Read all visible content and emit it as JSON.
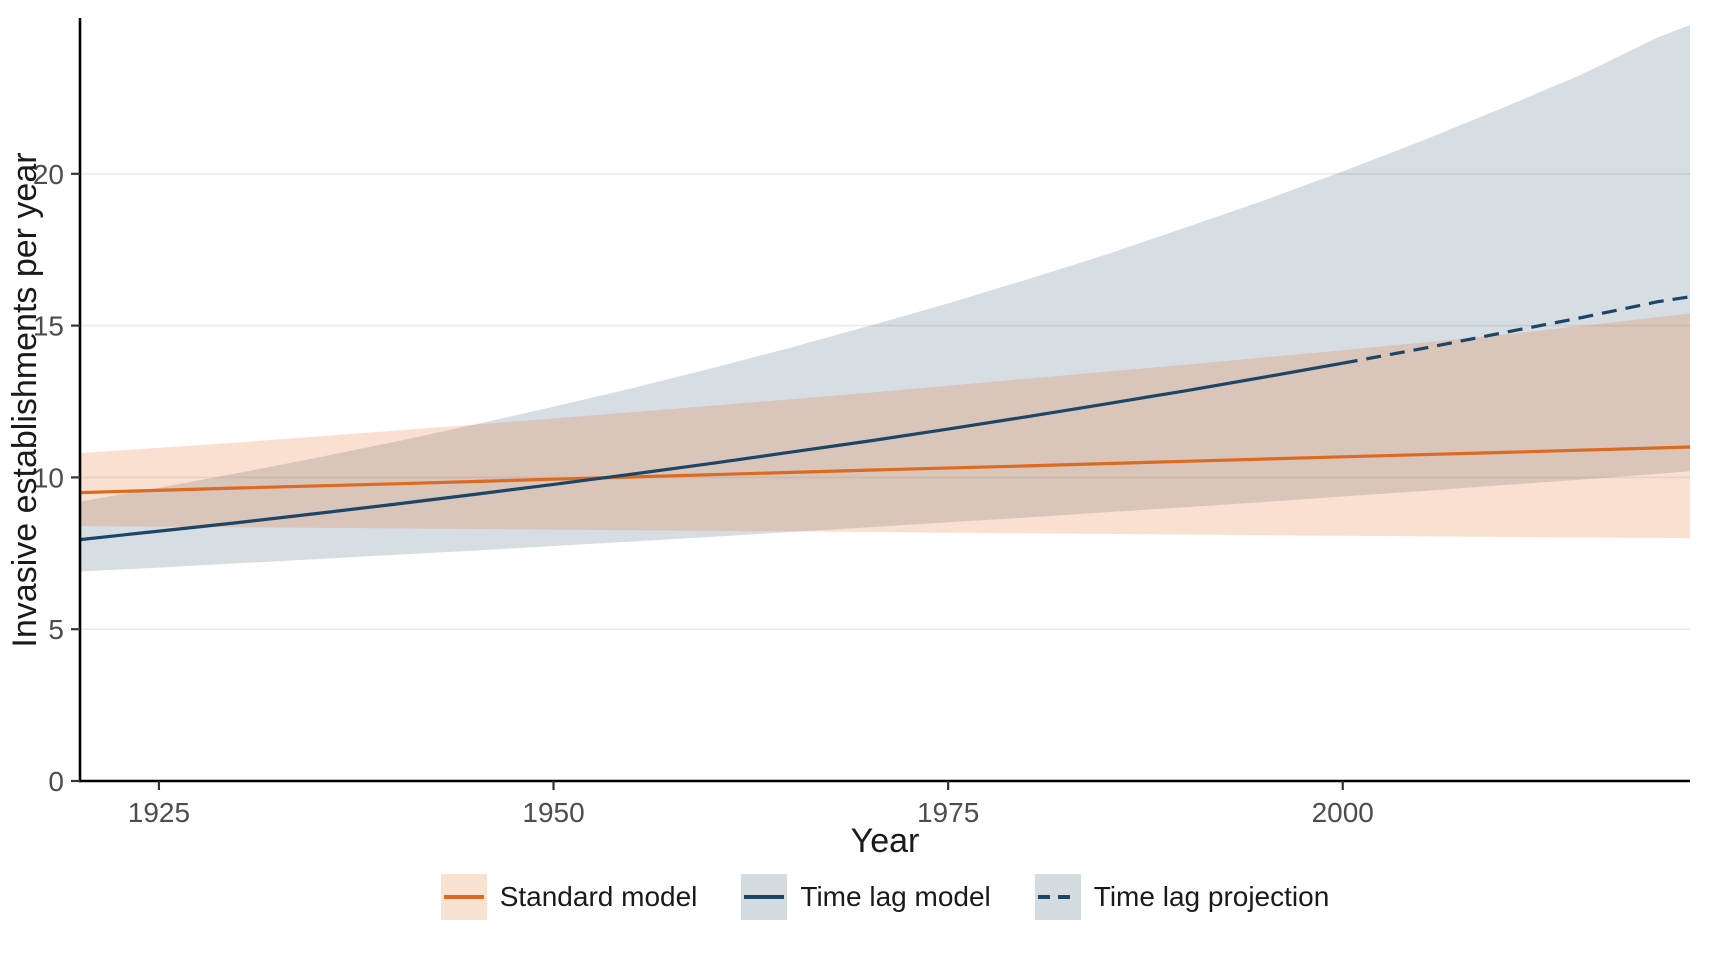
{
  "chart_data": {
    "type": "line",
    "title": "",
    "xlabel": "Year",
    "ylabel": "Invasive establishments per year",
    "x_domain": [
      1920,
      2022
    ],
    "y_domain": [
      0,
      25
    ],
    "x_ticks": [
      1925,
      1950,
      1975,
      2000
    ],
    "y_ticks": [
      0,
      5,
      10,
      15,
      20
    ],
    "grid": "horizontal-only",
    "legend_position": "bottom",
    "colors": {
      "standard_line": "#DC6A20",
      "timelag_line": "#1C4566",
      "standard_ribbon_fill": "#E8702B",
      "timelag_ribbon_fill": "#1C4566",
      "gridline": "#EBEBEB",
      "axis_line": "#000000",
      "tick_mark": "#333333",
      "tick_label": "#4D4D4D",
      "axis_title": "#1A1A1A"
    },
    "ribbons": [
      {
        "name": "Time lag model 95% CI",
        "color": "#1C4566",
        "opacity": 0.18,
        "x": [
          1920,
          1925,
          1930,
          1935,
          1940,
          1945,
          1950,
          1955,
          1960,
          1965,
          1970,
          1975,
          1980,
          1985,
          1990,
          1995,
          2000,
          2005,
          2010,
          2015,
          2020,
          2022
        ],
        "upper": [
          9.2,
          9.66,
          10.14,
          10.65,
          11.18,
          11.74,
          12.33,
          12.94,
          13.59,
          14.27,
          14.99,
          15.73,
          16.52,
          17.34,
          18.22,
          19.12,
          20.08,
          21.08,
          22.14,
          23.24,
          24.5,
          24.9
        ],
        "lower": [
          6.9,
          7.03,
          7.17,
          7.31,
          7.45,
          7.59,
          7.74,
          7.89,
          8.04,
          8.2,
          8.36,
          8.52,
          8.68,
          8.85,
          9.02,
          9.19,
          9.37,
          9.55,
          9.74,
          9.92,
          10.12,
          10.2
        ]
      },
      {
        "name": "Standard model 95% CI",
        "color": "#E8702B",
        "opacity": 0.22,
        "x": [
          1920,
          1930,
          1940,
          1950,
          1960,
          1970,
          1980,
          1990,
          2000,
          2010,
          2022
        ],
        "upper": [
          10.8,
          11.15,
          11.54,
          11.94,
          12.36,
          12.79,
          13.25,
          13.71,
          14.19,
          14.69,
          15.4
        ],
        "lower": [
          8.4,
          8.36,
          8.32,
          8.28,
          8.24,
          8.2,
          8.16,
          8.12,
          8.08,
          8.04,
          8.0
        ]
      }
    ],
    "series": [
      {
        "name": "Standard model",
        "style": "solid",
        "color": "#DC6A20",
        "x": [
          1920,
          1930,
          1940,
          1950,
          1960,
          1970,
          1980,
          1990,
          2000,
          2010,
          2022
        ],
        "y": [
          9.5,
          9.65,
          9.79,
          9.94,
          10.09,
          10.24,
          10.38,
          10.53,
          10.68,
          10.82,
          11.0
        ]
      },
      {
        "name": "Time lag model",
        "style": "solid",
        "color": "#1C4566",
        "x": [
          1920,
          1925,
          1930,
          1935,
          1940,
          1945,
          1950,
          1955,
          1960,
          1965,
          1970,
          1975,
          1980,
          1985,
          1990,
          1995,
          2000
        ],
        "y": [
          7.95,
          8.23,
          8.51,
          8.81,
          9.12,
          9.44,
          9.77,
          10.11,
          10.46,
          10.83,
          11.2,
          11.59,
          12.0,
          12.42,
          12.85,
          13.3,
          13.76
        ]
      },
      {
        "name": "Time lag projection",
        "style": "dashed",
        "color": "#1C4566",
        "x": [
          2000,
          2005,
          2010,
          2015,
          2020,
          2022
        ],
        "y": [
          13.76,
          14.24,
          14.75,
          15.25,
          15.79,
          15.95
        ]
      }
    ],
    "legend": [
      {
        "label": "Standard model",
        "swatch": "#F9E3D0",
        "line_color": "#DC6A20",
        "dash": false
      },
      {
        "label": "Time lag model",
        "swatch": "#D4DBE1",
        "line_color": "#1C4566",
        "dash": false
      },
      {
        "label": "Time lag projection",
        "swatch": "#D4DBE1",
        "line_color": "#1C4566",
        "dash": true
      }
    ]
  }
}
